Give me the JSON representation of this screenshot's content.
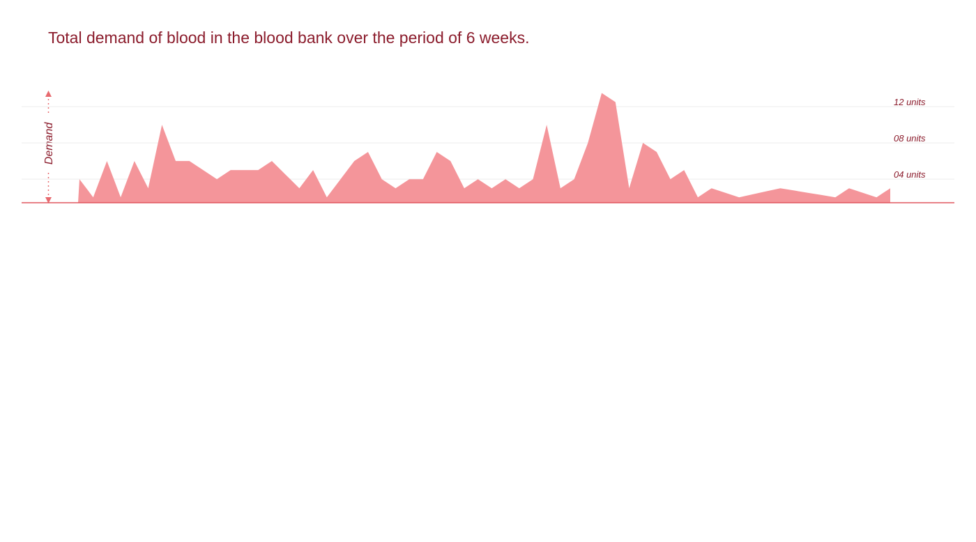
{
  "chart_data": {
    "type": "area",
    "title": "Total demand of blood in the blood bank over the period of 6 weeks.",
    "y_label": "Demand",
    "categories": [
      null,
      null,
      null,
      null,
      null,
      null,
      null,
      null,
      null,
      null,
      null,
      null,
      null,
      null,
      null,
      null,
      null,
      null,
      null,
      null,
      null,
      null,
      null,
      null,
      null,
      null,
      null,
      null,
      null,
      null,
      null,
      null,
      null,
      null,
      null,
      null,
      null,
      null,
      null,
      null,
      null,
      null,
      null,
      null,
      null,
      null,
      null,
      null,
      null,
      null,
      null,
      null,
      null,
      null,
      null,
      null,
      null,
      null,
      null,
      null
    ],
    "values": [
      4,
      2,
      6,
      2,
      6,
      3,
      10,
      6,
      6,
      5,
      4,
      5,
      5,
      5,
      6,
      4.5,
      3,
      5,
      2,
      4,
      6,
      7,
      4,
      3,
      4,
      4,
      7,
      6,
      3,
      4,
      3,
      4,
      3,
      4,
      10,
      3,
      4,
      8,
      13.5,
      12.5,
      3,
      8,
      7,
      4,
      5,
      2,
      3,
      2.5,
      2,
      2.33,
      2.67,
      3,
      2.75,
      2.5,
      2.25,
      2,
      3,
      2.5,
      2,
      3
    ],
    "color": "#f4959a",
    "baseline_color": "#e0575e",
    "ylim": [
      1.4,
      14
    ],
    "yticks": [
      {
        "value": 4,
        "label": "04 units"
      },
      {
        "value": 8,
        "label": "08 units"
      },
      {
        "value": 12,
        "label": "12 units"
      }
    ],
    "grid": true
  }
}
